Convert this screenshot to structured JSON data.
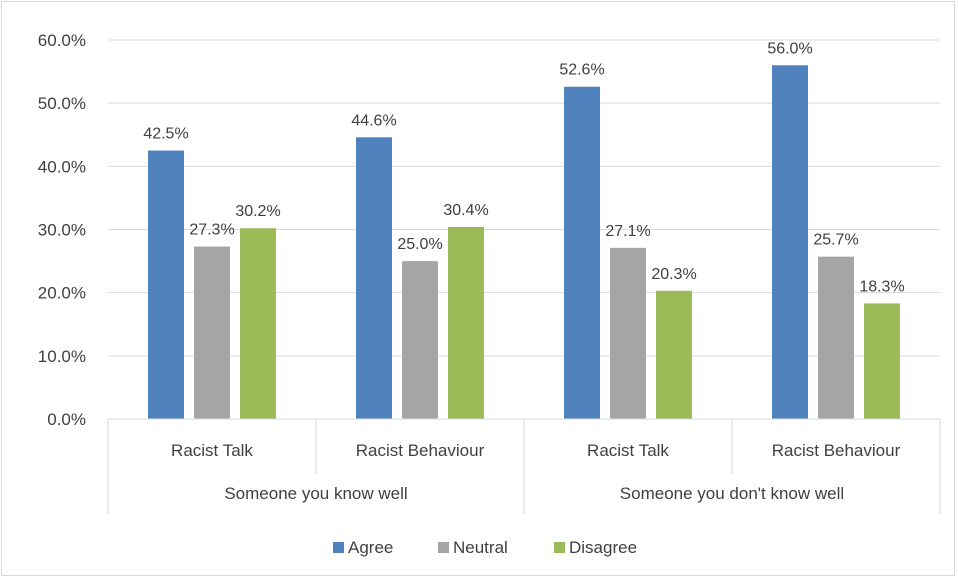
{
  "chart_data": {
    "type": "bar",
    "title": "",
    "xlabel": "",
    "ylabel": "",
    "ylim": [
      0,
      60
    ],
    "y_ticks": [
      "0.0%",
      "10.0%",
      "20.0%",
      "30.0%",
      "40.0%",
      "50.0%",
      "60.0%"
    ],
    "grid": true,
    "legend_position": "bottom",
    "groups": [
      {
        "label": "Someone you know well",
        "categories": [
          "Racist Talk",
          "Racist Behaviour"
        ]
      },
      {
        "label": "Someone you don't know well",
        "categories": [
          "Racist Talk",
          "Racist Behaviour"
        ]
      }
    ],
    "categories": [
      "Racist Talk",
      "Racist Behaviour",
      "Racist Talk",
      "Racist Behaviour"
    ],
    "series": [
      {
        "name": "Agree",
        "color": "#4f81bd",
        "values": [
          42.5,
          44.6,
          52.6,
          56.0
        ],
        "labels": [
          "42.5%",
          "44.6%",
          "52.6%",
          "56.0%"
        ]
      },
      {
        "name": "Neutral",
        "color": "#a5a5a5",
        "values": [
          27.3,
          25.0,
          27.1,
          25.7
        ],
        "labels": [
          "27.3%",
          "25.0%",
          "27.1%",
          "25.7%"
        ]
      },
      {
        "name": "Disagree",
        "color": "#9bbb59",
        "values": [
          30.2,
          30.4,
          20.3,
          18.3
        ],
        "labels": [
          "30.2%",
          "30.4%",
          "20.3%",
          "18.3%"
        ]
      }
    ]
  }
}
